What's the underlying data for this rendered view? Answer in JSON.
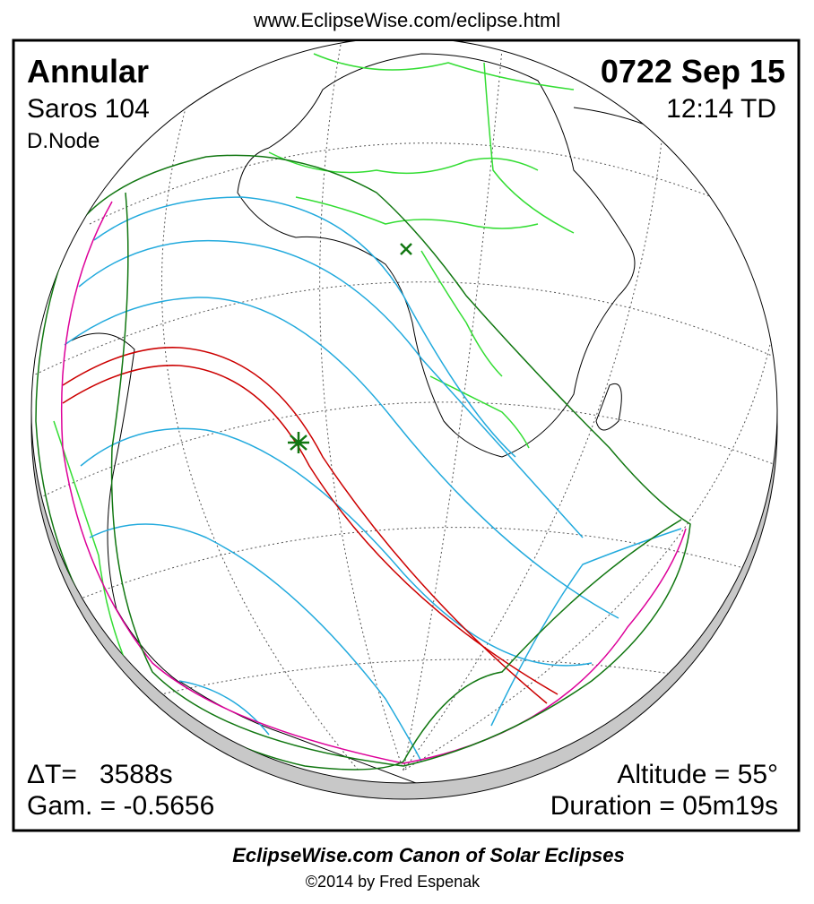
{
  "header": {
    "url": "www.EclipseWise.com/eclipse.html"
  },
  "panel": {
    "eclipse_type": "Annular",
    "saros": "Saros 104",
    "node": "D.Node",
    "date": "0722 Sep 15",
    "time": "12:14 TD",
    "delta_t": "ΔT=   3588s",
    "gamma": "Gam. = -0.5656",
    "altitude": "Altitude = 55°",
    "duration": "Duration = 05m19s"
  },
  "footer": {
    "title": "EclipseWise.com Canon of Solar Eclipses",
    "copyright": "©2014 by Fred Espenak"
  }
}
